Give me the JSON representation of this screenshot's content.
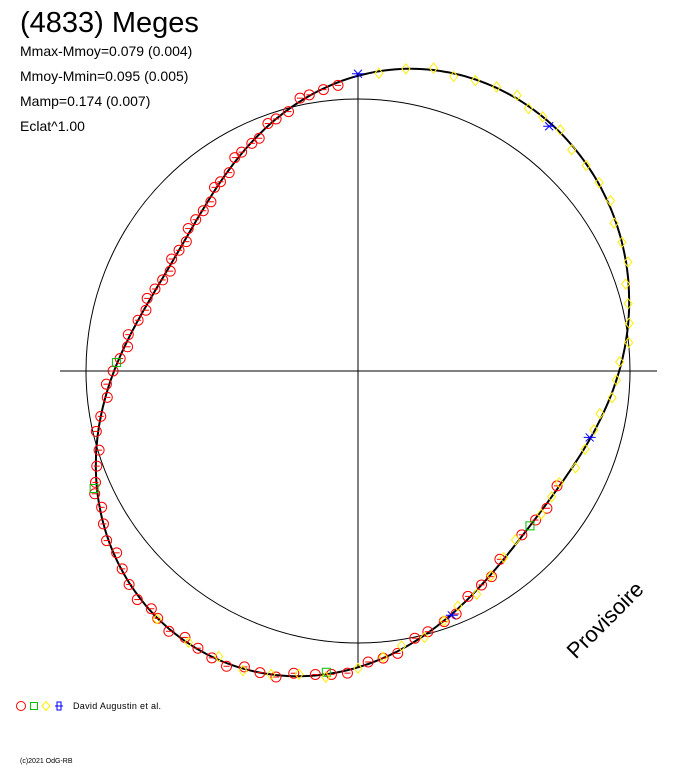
{
  "title": "(4833) Meges",
  "stats": [
    "Mmax-Mmoy=0.079 (0.004)",
    "Mmoy-Mmin=0.095 (0.005)",
    "Mamp=0.174 (0.007)",
    "Eclat^1.00"
  ],
  "watermark": "Provisoire",
  "legend": {
    "text": "David Augustin et al.",
    "colors": [
      "#ff0000",
      "#00c000",
      "#ffee00",
      "#0000ff"
    ]
  },
  "copyright": "(c)2021 OdG-RB",
  "chart_data": {
    "type": "scatter",
    "projection": "polar",
    "fit_amplitude": 0.174,
    "fit_harmonics": {
      "c1": 0.01,
      "s1": -0.005,
      "c2": -0.04,
      "s2": 0.078,
      "c3": 0.006,
      "s3": -0.004,
      "c4": 0.004,
      "s4": 0.0
    },
    "series": [
      {
        "name": "",
        "marker": "circle",
        "color": "#ff0000",
        "phase_deg": [
          94,
          97,
          100,
          102,
          105,
          108,
          110,
          113,
          115,
          118,
          120,
          123,
          126,
          128,
          131,
          134,
          137,
          140,
          143,
          146,
          149,
          152,
          155,
          158,
          161,
          164,
          167,
          171,
          174,
          177,
          180,
          183,
          186,
          190,
          193,
          197,
          200,
          203,
          205,
          208,
          211,
          214,
          217,
          220,
          223,
          226,
          229,
          231,
          234,
          237,
          240,
          243,
          246,
          249,
          252,
          255,
          258,
          262,
          265,
          268,
          272,
          275,
          278,
          282,
          285,
          289,
          292,
          296,
          300,
          303,
          307,
          315,
          320,
          324,
          330
        ]
      },
      {
        "name": "",
        "marker": "square",
        "color": "#00c000",
        "phase_deg": [
          178,
          204,
          264,
          318
        ]
      },
      {
        "name": "",
        "marker": "diamond",
        "color": "#ffee00",
        "phase_deg": [
          86,
          81,
          76,
          72,
          68,
          64,
          60,
          57,
          54,
          50,
          46,
          42,
          38,
          34,
          30,
          26,
          22,
          18,
          14,
          10,
          6,
          2,
          358,
          354,
          350,
          346,
          341,
          336,
          331,
          327,
          322,
          313,
          308,
          303,
          298,
          293,
          289,
          284,
          279,
          275,
          270,
          264,
          259,
          254,
          249,
          244,
          238,
          231
        ]
      },
      {
        "name": "",
        "marker": "star",
        "color": "#0000ff",
        "phase_deg": [
          90,
          52,
          344,
          291
        ]
      }
    ]
  }
}
